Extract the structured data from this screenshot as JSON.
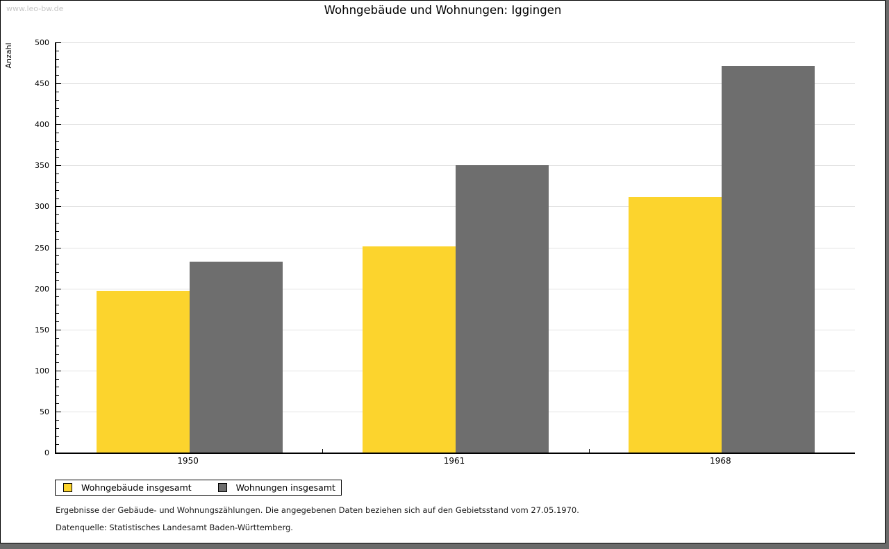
{
  "page": {
    "watermark": "www.leo-bw.de",
    "title": "Wohngebäude und Wohnungen: Iggingen"
  },
  "chart_data": {
    "type": "bar",
    "title": "Wohngebäude und Wohnungen: Iggingen",
    "ylabel": "Anzahl",
    "xlabel": "",
    "categories": [
      "1950",
      "1961",
      "1968"
    ],
    "series": [
      {
        "name": "Wohngebäude insgesamt",
        "color": "#FCD42D",
        "values": [
          197,
          251,
          311
        ]
      },
      {
        "name": "Wohnungen insgesamt",
        "color": "#6E6E6E",
        "values": [
          233,
          350,
          471
        ]
      }
    ],
    "ylim": [
      0,
      500
    ],
    "yticks": [
      0,
      50,
      100,
      150,
      200,
      250,
      300,
      350,
      400,
      450,
      500
    ],
    "minor_tick_step": 10,
    "grid": true,
    "legend_position": "bottom-left"
  },
  "footnotes": {
    "line1": "Ergebnisse der Gebäude- und Wohnungszählungen. Die angegebenen Daten beziehen sich auf den Gebietsstand vom 27.05.1970.",
    "line2": "Datenquelle: Statistisches Landesamt Baden-Württemberg."
  },
  "colors": {
    "bar_yellow": "#FCD42D",
    "bar_gray": "#6E6E6E",
    "gridline": "#e3e3e3",
    "watermark": "#c6c6c6",
    "page_background": "#ffffff",
    "outer_background": "#6a6a6a"
  }
}
